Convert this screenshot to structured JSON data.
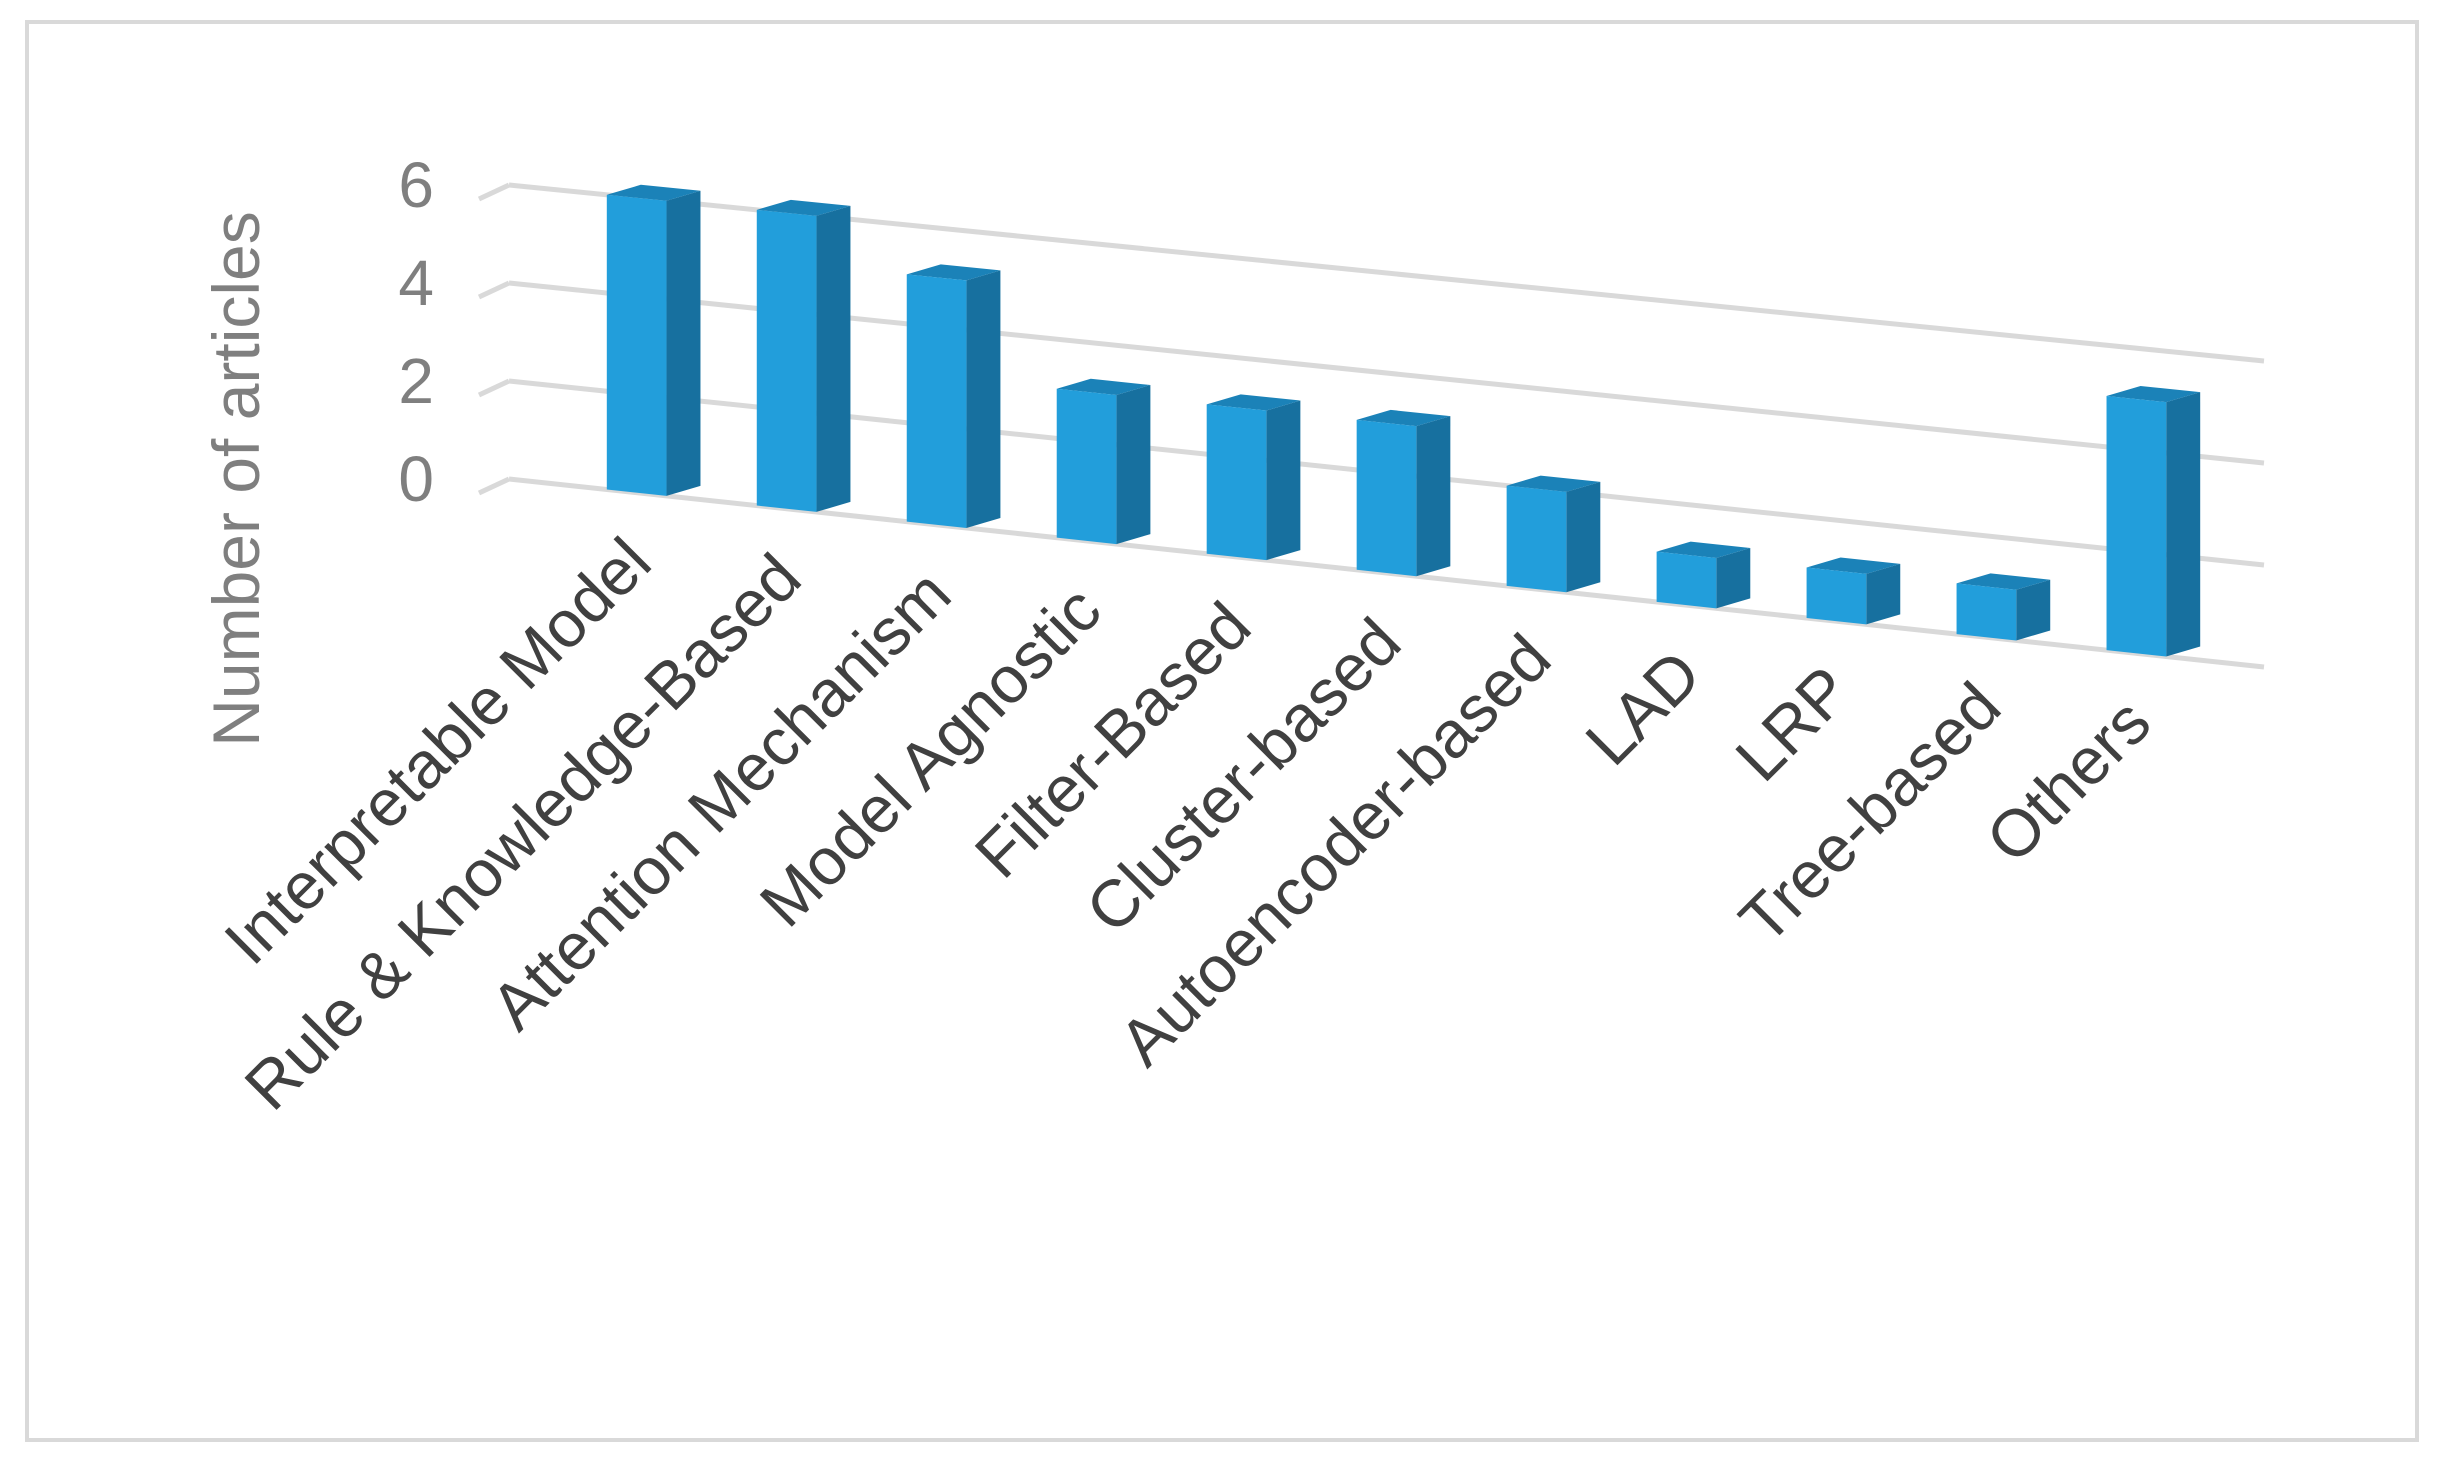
{
  "chart_data": {
    "type": "bar",
    "title": "",
    "xlabel": "",
    "ylabel": "Number of articles",
    "categories": [
      "Interpretable Model",
      "Rule & Knowledge-Based",
      "Attention Mechanism",
      "Model Agnostic",
      "Filter-Based",
      "Cluster-based",
      "Autoencoder-based",
      "LAD",
      "LRP",
      "Tree-based",
      "Others"
    ],
    "values": [
      6,
      6,
      5,
      3,
      3,
      3,
      2,
      1,
      1,
      1,
      5
    ],
    "ylim": [
      0,
      6
    ],
    "yticks": [
      "0",
      "2",
      "4",
      "6"
    ],
    "grid": true,
    "legend": "none",
    "colors": {
      "bar_front": "#229edb",
      "bar_side": "#17709f",
      "bar_top": "#1b82b8"
    }
  }
}
